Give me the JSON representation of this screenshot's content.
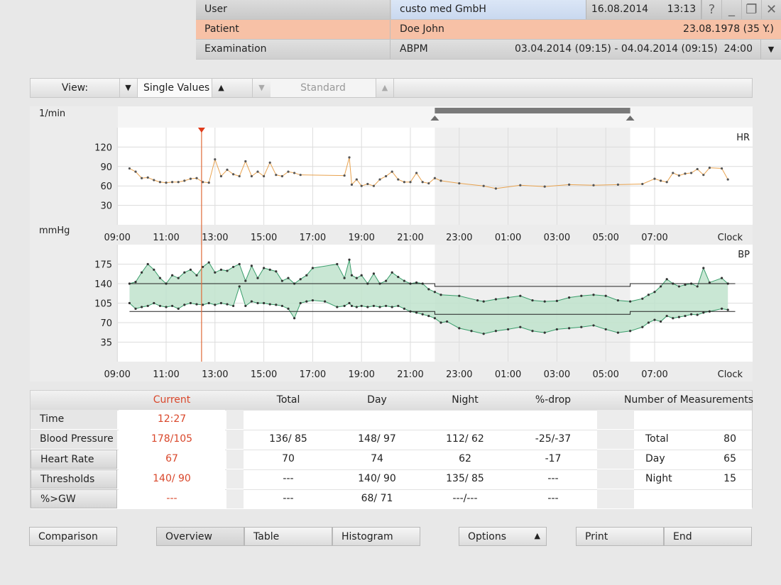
{
  "header": {
    "user_label": "User",
    "user_value": "custo med GmbH",
    "date": "16.08.2014",
    "time": "13:13",
    "help_icon": "?",
    "patient_label": "Patient",
    "patient_name": "Doe John",
    "patient_birth": "23.08.1978 (35 Y.)",
    "exam_label": "Examination",
    "exam_type": "ABPM",
    "exam_range": "03.04.2014 (09:15) - 04.04.2014 (09:15)",
    "exam_duration": "24:00"
  },
  "toolbar": {
    "view_label": "View:",
    "view_value": "Single Values",
    "standard_value": "Standard"
  },
  "chart_data": {
    "type": "line",
    "x_ticks": [
      "11:00",
      "13:00",
      "15:00",
      "17:00",
      "19:00",
      "21:00",
      "23:00",
      "01:00",
      "03:00",
      "05:00",
      "07:00",
      "09:00"
    ],
    "x_unit": "Clock",
    "cursor_time": "12:27",
    "night_range": [
      "22:00",
      "06:00"
    ],
    "hr": {
      "ylabel": "1/min",
      "name": "HR",
      "y_ticks": [
        30,
        60,
        90,
        120
      ],
      "ylim": [
        0,
        150
      ],
      "color": "#e8a24e",
      "values": [
        [
          9.5,
          87
        ],
        [
          9.75,
          82
        ],
        [
          10,
          72
        ],
        [
          10.25,
          73
        ],
        [
          10.5,
          69
        ],
        [
          10.75,
          66
        ],
        [
          11,
          65
        ],
        [
          11.25,
          66
        ],
        [
          11.5,
          66
        ],
        [
          11.75,
          68
        ],
        [
          12,
          71
        ],
        [
          12.25,
          72
        ],
        [
          12.5,
          66
        ],
        [
          12.75,
          65
        ],
        [
          13,
          101
        ],
        [
          13.25,
          75
        ],
        [
          13.5,
          85
        ],
        [
          13.75,
          78
        ],
        [
          14,
          75
        ],
        [
          14.25,
          98
        ],
        [
          14.5,
          75
        ],
        [
          14.75,
          82
        ],
        [
          15,
          75
        ],
        [
          15.25,
          96
        ],
        [
          15.5,
          77
        ],
        [
          15.75,
          75
        ],
        [
          16,
          82
        ],
        [
          16.25,
          80
        ],
        [
          16.5,
          77
        ],
        [
          18.3,
          76
        ],
        [
          18.5,
          104
        ],
        [
          18.6,
          62
        ],
        [
          18.8,
          70
        ],
        [
          19,
          60
        ],
        [
          19.25,
          63
        ],
        [
          19.5,
          60
        ],
        [
          19.75,
          70
        ],
        [
          20,
          75
        ],
        [
          20.25,
          82
        ],
        [
          20.5,
          70
        ],
        [
          20.75,
          66
        ],
        [
          21,
          66
        ],
        [
          21.25,
          80
        ],
        [
          21.5,
          66
        ],
        [
          21.75,
          64
        ],
        [
          22,
          72
        ],
        [
          22.25,
          68
        ],
        [
          23,
          64
        ],
        [
          24,
          60
        ],
        [
          24.5,
          56
        ],
        [
          25.5,
          61
        ],
        [
          26.5,
          59
        ],
        [
          27.5,
          62
        ],
        [
          28.5,
          61
        ],
        [
          29.5,
          62
        ],
        [
          30.5,
          63
        ],
        [
          31,
          71
        ],
        [
          31.25,
          68
        ],
        [
          31.5,
          66
        ],
        [
          31.75,
          80
        ],
        [
          32,
          76
        ],
        [
          32.25,
          79
        ],
        [
          32.5,
          80
        ],
        [
          32.75,
          86
        ],
        [
          33,
          77
        ],
        [
          33.25,
          88
        ],
        [
          33.75,
          87
        ],
        [
          34,
          70
        ]
      ]
    },
    "bp": {
      "ylabel": "mmHg",
      "name": "BP",
      "y_ticks": [
        35,
        70,
        105,
        140,
        175
      ],
      "ylim": [
        0,
        210
      ],
      "color": "#3a9d6b",
      "threshold_day": [
        140,
        90
      ],
      "threshold_night": [
        135,
        85
      ],
      "systolic": [
        [
          9.5,
          140
        ],
        [
          9.75,
          143
        ],
        [
          10,
          160
        ],
        [
          10.25,
          175
        ],
        [
          10.5,
          165
        ],
        [
          10.75,
          150
        ],
        [
          11,
          140
        ],
        [
          11.25,
          155
        ],
        [
          11.5,
          150
        ],
        [
          11.75,
          160
        ],
        [
          12,
          165
        ],
        [
          12.25,
          155
        ],
        [
          12.5,
          170
        ],
        [
          12.75,
          178
        ],
        [
          13,
          160
        ],
        [
          13.25,
          165
        ],
        [
          13.5,
          163
        ],
        [
          13.75,
          170
        ],
        [
          14,
          175
        ],
        [
          14.25,
          145
        ],
        [
          14.5,
          172
        ],
        [
          14.75,
          150
        ],
        [
          15,
          168
        ],
        [
          15.25,
          165
        ],
        [
          15.5,
          162
        ],
        [
          15.75,
          145
        ],
        [
          16,
          150
        ],
        [
          16.25,
          140
        ],
        [
          16.5,
          148
        ],
        [
          16.75,
          155
        ],
        [
          17,
          168
        ],
        [
          18,
          175
        ],
        [
          18.3,
          150
        ],
        [
          18.5,
          183
        ],
        [
          18.6,
          155
        ],
        [
          18.8,
          150
        ],
        [
          19,
          155
        ],
        [
          19.25,
          140
        ],
        [
          19.5,
          158
        ],
        [
          19.75,
          140
        ],
        [
          20,
          145
        ],
        [
          20.25,
          160
        ],
        [
          20.5,
          152
        ],
        [
          20.75,
          145
        ],
        [
          21,
          140
        ],
        [
          21.25,
          142
        ],
        [
          21.5,
          140
        ],
        [
          21.75,
          130
        ],
        [
          22,
          125
        ],
        [
          22.25,
          120
        ],
        [
          23,
          118
        ],
        [
          23.75,
          110
        ],
        [
          24,
          108
        ],
        [
          24.5,
          112
        ],
        [
          25,
          115
        ],
        [
          25.5,
          118
        ],
        [
          26,
          110
        ],
        [
          26.5,
          108
        ],
        [
          27,
          109
        ],
        [
          27.5,
          115
        ],
        [
          28,
          118
        ],
        [
          28.5,
          120
        ],
        [
          29,
          118
        ],
        [
          29.5,
          110
        ],
        [
          30,
          108
        ],
        [
          30.5,
          113
        ],
        [
          30.75,
          120
        ],
        [
          31,
          125
        ],
        [
          31.25,
          135
        ],
        [
          31.5,
          148
        ],
        [
          31.75,
          140
        ],
        [
          32,
          135
        ],
        [
          32.25,
          138
        ],
        [
          32.5,
          140
        ],
        [
          32.75,
          135
        ],
        [
          33,
          168
        ],
        [
          33.25,
          142
        ],
        [
          33.75,
          150
        ],
        [
          34,
          140
        ]
      ],
      "diastolic": [
        [
          9.5,
          105
        ],
        [
          9.75,
          95
        ],
        [
          10,
          98
        ],
        [
          10.25,
          100
        ],
        [
          10.5,
          105
        ],
        [
          10.75,
          100
        ],
        [
          11,
          98
        ],
        [
          11.25,
          100
        ],
        [
          11.5,
          95
        ],
        [
          11.75,
          102
        ],
        [
          12,
          105
        ],
        [
          12.25,
          103
        ],
        [
          12.5,
          102
        ],
        [
          12.75,
          105
        ],
        [
          13,
          102
        ],
        [
          13.25,
          105
        ],
        [
          13.5,
          103
        ],
        [
          13.75,
          100
        ],
        [
          14,
          135
        ],
        [
          14.25,
          100
        ],
        [
          14.5,
          108
        ],
        [
          14.75,
          105
        ],
        [
          15,
          105
        ],
        [
          15.25,
          103
        ],
        [
          15.5,
          102
        ],
        [
          15.75,
          100
        ],
        [
          16,
          95
        ],
        [
          16.25,
          78
        ],
        [
          16.5,
          105
        ],
        [
          16.75,
          108
        ],
        [
          17,
          110
        ],
        [
          17.5,
          108
        ],
        [
          18,
          98
        ],
        [
          18.3,
          100
        ],
        [
          18.5,
          105
        ],
        [
          18.6,
          100
        ],
        [
          18.8,
          98
        ],
        [
          19,
          100
        ],
        [
          19.25,
          98
        ],
        [
          19.5,
          100
        ],
        [
          19.75,
          98
        ],
        [
          20,
          100
        ],
        [
          20.25,
          98
        ],
        [
          20.5,
          100
        ],
        [
          20.75,
          95
        ],
        [
          21,
          90
        ],
        [
          21.25,
          88
        ],
        [
          21.5,
          85
        ],
        [
          21.75,
          82
        ],
        [
          22,
          78
        ],
        [
          22.25,
          70
        ],
        [
          22.5,
          72
        ],
        [
          23,
          60
        ],
        [
          23.5,
          55
        ],
        [
          24,
          50
        ],
        [
          24.5,
          55
        ],
        [
          25,
          58
        ],
        [
          25.5,
          62
        ],
        [
          26,
          55
        ],
        [
          26.5,
          52
        ],
        [
          27,
          58
        ],
        [
          27.5,
          60
        ],
        [
          28,
          62
        ],
        [
          28.5,
          65
        ],
        [
          29,
          58
        ],
        [
          29.5,
          52
        ],
        [
          30,
          55
        ],
        [
          30.5,
          62
        ],
        [
          30.75,
          70
        ],
        [
          31,
          75
        ],
        [
          31.25,
          72
        ],
        [
          31.5,
          82
        ],
        [
          31.75,
          78
        ],
        [
          32,
          80
        ],
        [
          32.25,
          82
        ],
        [
          32.5,
          85
        ],
        [
          32.75,
          84
        ],
        [
          33,
          88
        ],
        [
          33.25,
          90
        ],
        [
          33.75,
          95
        ],
        [
          34,
          93
        ]
      ]
    }
  },
  "table": {
    "headers": [
      "Current",
      "Total",
      "Day",
      "Night",
      "%-drop",
      "Number of Measurements"
    ],
    "rows": [
      {
        "label": "Time",
        "current": "12:27",
        "total": "",
        "day": "",
        "night": "",
        "drop": ""
      },
      {
        "label": "Blood Pressure",
        "current": "178/105",
        "total": "136/ 85",
        "day": "148/ 97",
        "night": "112/ 62",
        "drop": "-25/-37"
      },
      {
        "label": "Heart Rate",
        "current": "67",
        "total": "70",
        "day": "74",
        "night": "62",
        "drop": "-17"
      },
      {
        "label": "Thresholds",
        "current": "140/ 90",
        "total": "---",
        "day": "140/ 90",
        "night": "135/ 85",
        "drop": "---"
      },
      {
        "label": "%>GW",
        "current": "---",
        "total": "---",
        "day": "68/ 71",
        "night": "---/---",
        "drop": "---"
      }
    ],
    "measurements": [
      {
        "label": "Total",
        "value": "80"
      },
      {
        "label": "Day",
        "value": "65"
      },
      {
        "label": "Night",
        "value": "15"
      }
    ],
    "current_color": "#d9472b"
  },
  "buttons": {
    "comparison": "Comparison",
    "overview": "Overview",
    "table": "Table",
    "histogram": "Histogram",
    "options": "Options",
    "print": "Print",
    "end": "End"
  }
}
